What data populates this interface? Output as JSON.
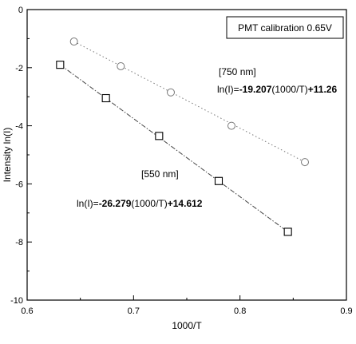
{
  "chart_data": {
    "type": "scatter",
    "title": "",
    "xlabel": "1000/T",
    "ylabel": "Intensity ln(I)",
    "xlim": [
      0.6,
      0.9
    ],
    "ylim": [
      -10,
      0
    ],
    "xticks": [
      0.6,
      0.7,
      0.8,
      0.9
    ],
    "xtick_labels": [
      "0.6",
      "0.7",
      "0.8",
      "0.9"
    ],
    "yticks": [
      0,
      -2,
      -4,
      -6,
      -8,
      -10
    ],
    "ytick_labels": [
      "0",
      "-2",
      "-4",
      "-6",
      "-8",
      "-10"
    ],
    "grid": false,
    "legend_box_text": "PMT calibration 0.65V",
    "series": [
      {
        "name": "750 nm",
        "label": "[750 nm]",
        "equation_prefix": "ln(I)=",
        "equation_bold": "-19.207",
        "equation_mid": "(1000/T)",
        "equation_end_bold": "+11.26",
        "marker": "circle",
        "line_style": "dotted",
        "color": "#777777",
        "points": [
          {
            "x": 0.644,
            "y": -1.1
          },
          {
            "x": 0.688,
            "y": -1.95
          },
          {
            "x": 0.735,
            "y": -2.85
          },
          {
            "x": 0.792,
            "y": -4.0
          },
          {
            "x": 0.861,
            "y": -5.25
          }
        ],
        "fit": {
          "slope": -19.207,
          "intercept": 11.26,
          "x_range": [
            0.644,
            0.861
          ]
        }
      },
      {
        "name": "550 nm",
        "label": "[550 nm]",
        "equation_prefix": "ln(I)=",
        "equation_bold": "-26.279",
        "equation_mid": "(1000/T)",
        "equation_end_bold": "+14.612",
        "marker": "square",
        "line_style": "dashdot",
        "color": "#444444",
        "points": [
          {
            "x": 0.631,
            "y": -1.9
          },
          {
            "x": 0.674,
            "y": -3.05
          },
          {
            "x": 0.724,
            "y": -4.35
          },
          {
            "x": 0.78,
            "y": -5.9
          },
          {
            "x": 0.845,
            "y": -7.65
          }
        ],
        "fit": {
          "slope": -26.279,
          "intercept": 14.612,
          "x_range": [
            0.631,
            0.845
          ]
        }
      }
    ]
  }
}
